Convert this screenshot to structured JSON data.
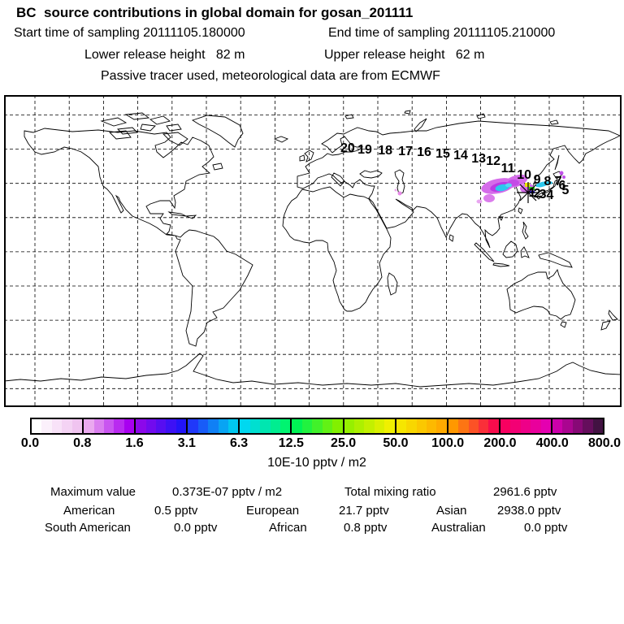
{
  "header": {
    "title": "BC  source contributions in global domain for gosan_201111",
    "start_time": "Start time of sampling 20111105.180000",
    "end_time": "End time of sampling 20111105.210000",
    "lower_release": "Lower release height   82 m",
    "upper_release": "Upper release height   62 m",
    "tracer_note": "Passive tracer used, meteorological data are from ECMWF"
  },
  "colorbar": {
    "tick_labels": [
      "0.0",
      "0.8",
      "1.6",
      "3.1",
      "6.3",
      "12.5",
      "25.0",
      "50.0",
      "100.0",
      "200.0",
      "400.0",
      "800.0"
    ],
    "unit_label": "10E-10 pptv / m2",
    "segments": [
      {
        "start": "#ffffff",
        "end": "#f0c4f0"
      },
      {
        "start": "#eaa9ef",
        "end": "#a800f0"
      },
      {
        "start": "#8c08ea",
        "end": "#2214f8"
      },
      {
        "start": "#2038fa",
        "end": "#00c8f0"
      },
      {
        "start": "#00d8f0",
        "end": "#00f470"
      },
      {
        "start": "#00f254",
        "end": "#82f000"
      },
      {
        "start": "#96f000",
        "end": "#f0f000"
      },
      {
        "start": "#f6e600",
        "end": "#ffaa00"
      },
      {
        "start": "#ff9800",
        "end": "#f80c4c"
      },
      {
        "start": "#f80060",
        "end": "#e400b0"
      },
      {
        "start": "#cc00aa",
        "end": "#421242"
      }
    ]
  },
  "stats": {
    "max_label": "Maximum value",
    "max_value": "0.373E-07 pptv / m2",
    "total_label": "Total mixing ratio",
    "total_value": "2961.6 pptv",
    "regions": [
      {
        "name": "American",
        "value": "0.5 pptv"
      },
      {
        "name": "European",
        "value": "21.7 pptv"
      },
      {
        "name": "Asian",
        "value": "2938.0 pptv"
      },
      {
        "name": "South American",
        "value": "0.0 pptv"
      },
      {
        "name": "African",
        "value": "0.8 pptv"
      },
      {
        "name": "Australian",
        "value": "0.0 pptv"
      }
    ]
  },
  "chart_data": {
    "type": "map",
    "title": "BC  source contributions in global domain for gosan_201111",
    "receptor_site": "gosan_201111",
    "receptor_location": {
      "lon": 125.5,
      "lat": 33.7
    },
    "sampling": {
      "start": "20111105.180000",
      "end": "20111105.210000"
    },
    "release_height_m": {
      "lower": 82,
      "upper": 62
    },
    "meteorology": "ECMWF",
    "tracer": "Passive tracer",
    "colorbar_levels": [
      0.0,
      0.8,
      1.6,
      3.1,
      6.3,
      12.5,
      25.0,
      50.0,
      100.0,
      200.0,
      400.0,
      800.0
    ],
    "colorbar_unit": "10E-10 pptv / m2",
    "maximum_value": "0.373E-07 pptv / m2",
    "total_mixing_ratio_pptv": 2961.6,
    "contributions_pptv": {
      "American": 0.5,
      "European": 21.7,
      "Asian": 2938.0,
      "South American": 0.0,
      "African": 0.8,
      "Australian": 0.0
    },
    "trajectory": {
      "days": [
        {
          "day": "20",
          "lon": 20.3,
          "lat": 60.0
        },
        {
          "day": "19",
          "lon": 30.3,
          "lat": 59.1
        },
        {
          "day": "18",
          "lon": 42.2,
          "lat": 58.6
        },
        {
          "day": "17",
          "lon": 54.0,
          "lat": 58.1
        },
        {
          "day": "16",
          "lon": 64.9,
          "lat": 57.7
        },
        {
          "day": "15",
          "lon": 75.8,
          "lat": 56.7
        },
        {
          "day": "14",
          "lon": 86.2,
          "lat": 55.8
        },
        {
          "day": "13",
          "lon": 96.7,
          "lat": 53.9
        },
        {
          "day": "12",
          "lon": 105.2,
          "lat": 52.5
        },
        {
          "day": "11",
          "lon": 113.7,
          "lat": 48.3
        },
        {
          "day": "10",
          "lon": 123.2,
          "lat": 44.5
        },
        {
          "day": "9",
          "lon": 130.8,
          "lat": 41.7
        },
        {
          "day": "8",
          "lon": 136.9,
          "lat": 40.8
        },
        {
          "day": "7",
          "lon": 143.1,
          "lat": 40.8
        },
        {
          "day": "6",
          "lon": 145.4,
          "lat": 38.4
        },
        {
          "day": "5",
          "lon": 147.3,
          "lat": 35.6
        },
        {
          "day": "4",
          "lon": 138.3,
          "lat": 32.8
        },
        {
          "day": "3",
          "lon": 134.1,
          "lat": 33.3
        },
        {
          "day": "2",
          "lon": 130.8,
          "lat": 33.7
        },
        {
          "day": "1",
          "lon": 127.9,
          "lat": 34.2
        }
      ]
    }
  }
}
